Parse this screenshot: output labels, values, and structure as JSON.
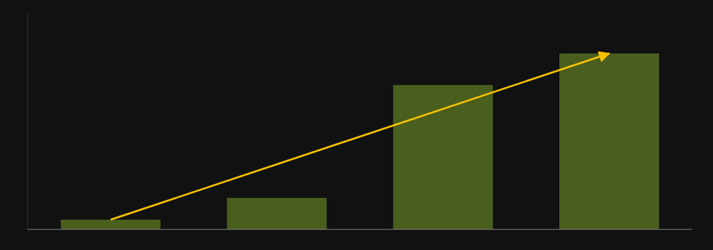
{
  "chart_data": {
    "type": "bar",
    "categories": [
      null,
      null,
      null,
      null
    ],
    "values": [
      0.559,
      1.816,
      8.316,
      10.132
    ],
    "color": "#4a5e1e",
    "ylim": [
      0,
      12.5
    ],
    "tick_labels": false,
    "grid": false
  }
}
